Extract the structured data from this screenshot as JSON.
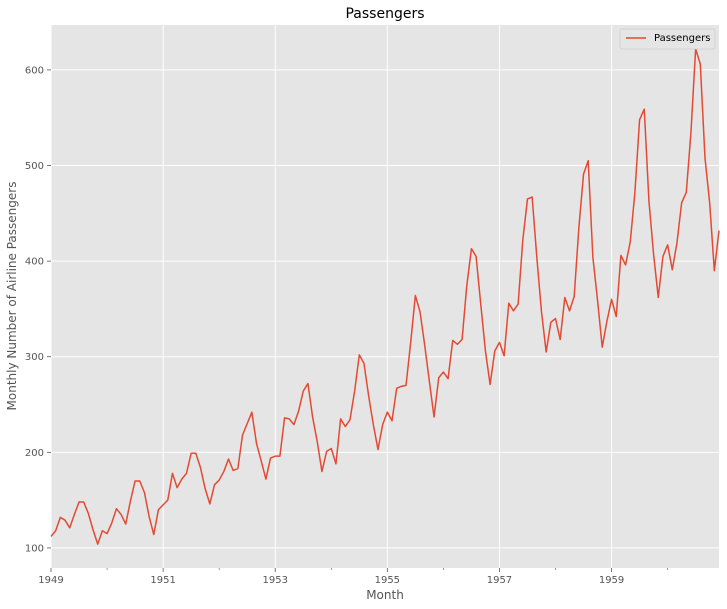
{
  "chart_data": {
    "type": "line",
    "title": "Passengers",
    "xlabel": "Month",
    "ylabel": "Monthly Number of Airline Passengers",
    "grid": true,
    "legend_position": "top-right",
    "x_start": "1949-01",
    "x_end": "1960-12",
    "xlim": [
      "1949-01",
      "1960-12"
    ],
    "ylim": [
      79,
      647
    ],
    "x_tick_labels": [
      "1949",
      "1951",
      "1953",
      "1955",
      "1957",
      "1959"
    ],
    "y_ticks": [
      100,
      200,
      300,
      400,
      500,
      600
    ],
    "series": [
      {
        "name": "Passengers",
        "color": "#E24A33",
        "values": [
          112,
          118,
          132,
          129,
          121,
          135,
          148,
          148,
          136,
          119,
          104,
          118,
          115,
          126,
          141,
          135,
          125,
          149,
          170,
          170,
          158,
          133,
          114,
          140,
          145,
          150,
          178,
          163,
          172,
          178,
          199,
          199,
          184,
          162,
          146,
          166,
          171,
          180,
          193,
          181,
          183,
          218,
          230,
          242,
          209,
          191,
          172,
          194,
          196,
          196,
          236,
          235,
          229,
          243,
          264,
          272,
          237,
          211,
          180,
          201,
          204,
          188,
          235,
          227,
          234,
          264,
          302,
          293,
          259,
          229,
          203,
          229,
          242,
          233,
          267,
          269,
          270,
          315,
          364,
          347,
          312,
          274,
          237,
          278,
          284,
          277,
          317,
          313,
          318,
          374,
          413,
          405,
          355,
          306,
          271,
          306,
          315,
          301,
          356,
          348,
          355,
          422,
          465,
          467,
          404,
          347,
          305,
          336,
          340,
          318,
          362,
          348,
          363,
          435,
          491,
          505,
          404,
          359,
          310,
          337,
          360,
          342,
          406,
          396,
          420,
          472,
          548,
          559,
          463,
          407,
          362,
          405,
          417,
          391,
          419,
          461,
          472,
          535,
          622,
          606,
          508,
          461,
          390,
          432
        ]
      }
    ]
  }
}
